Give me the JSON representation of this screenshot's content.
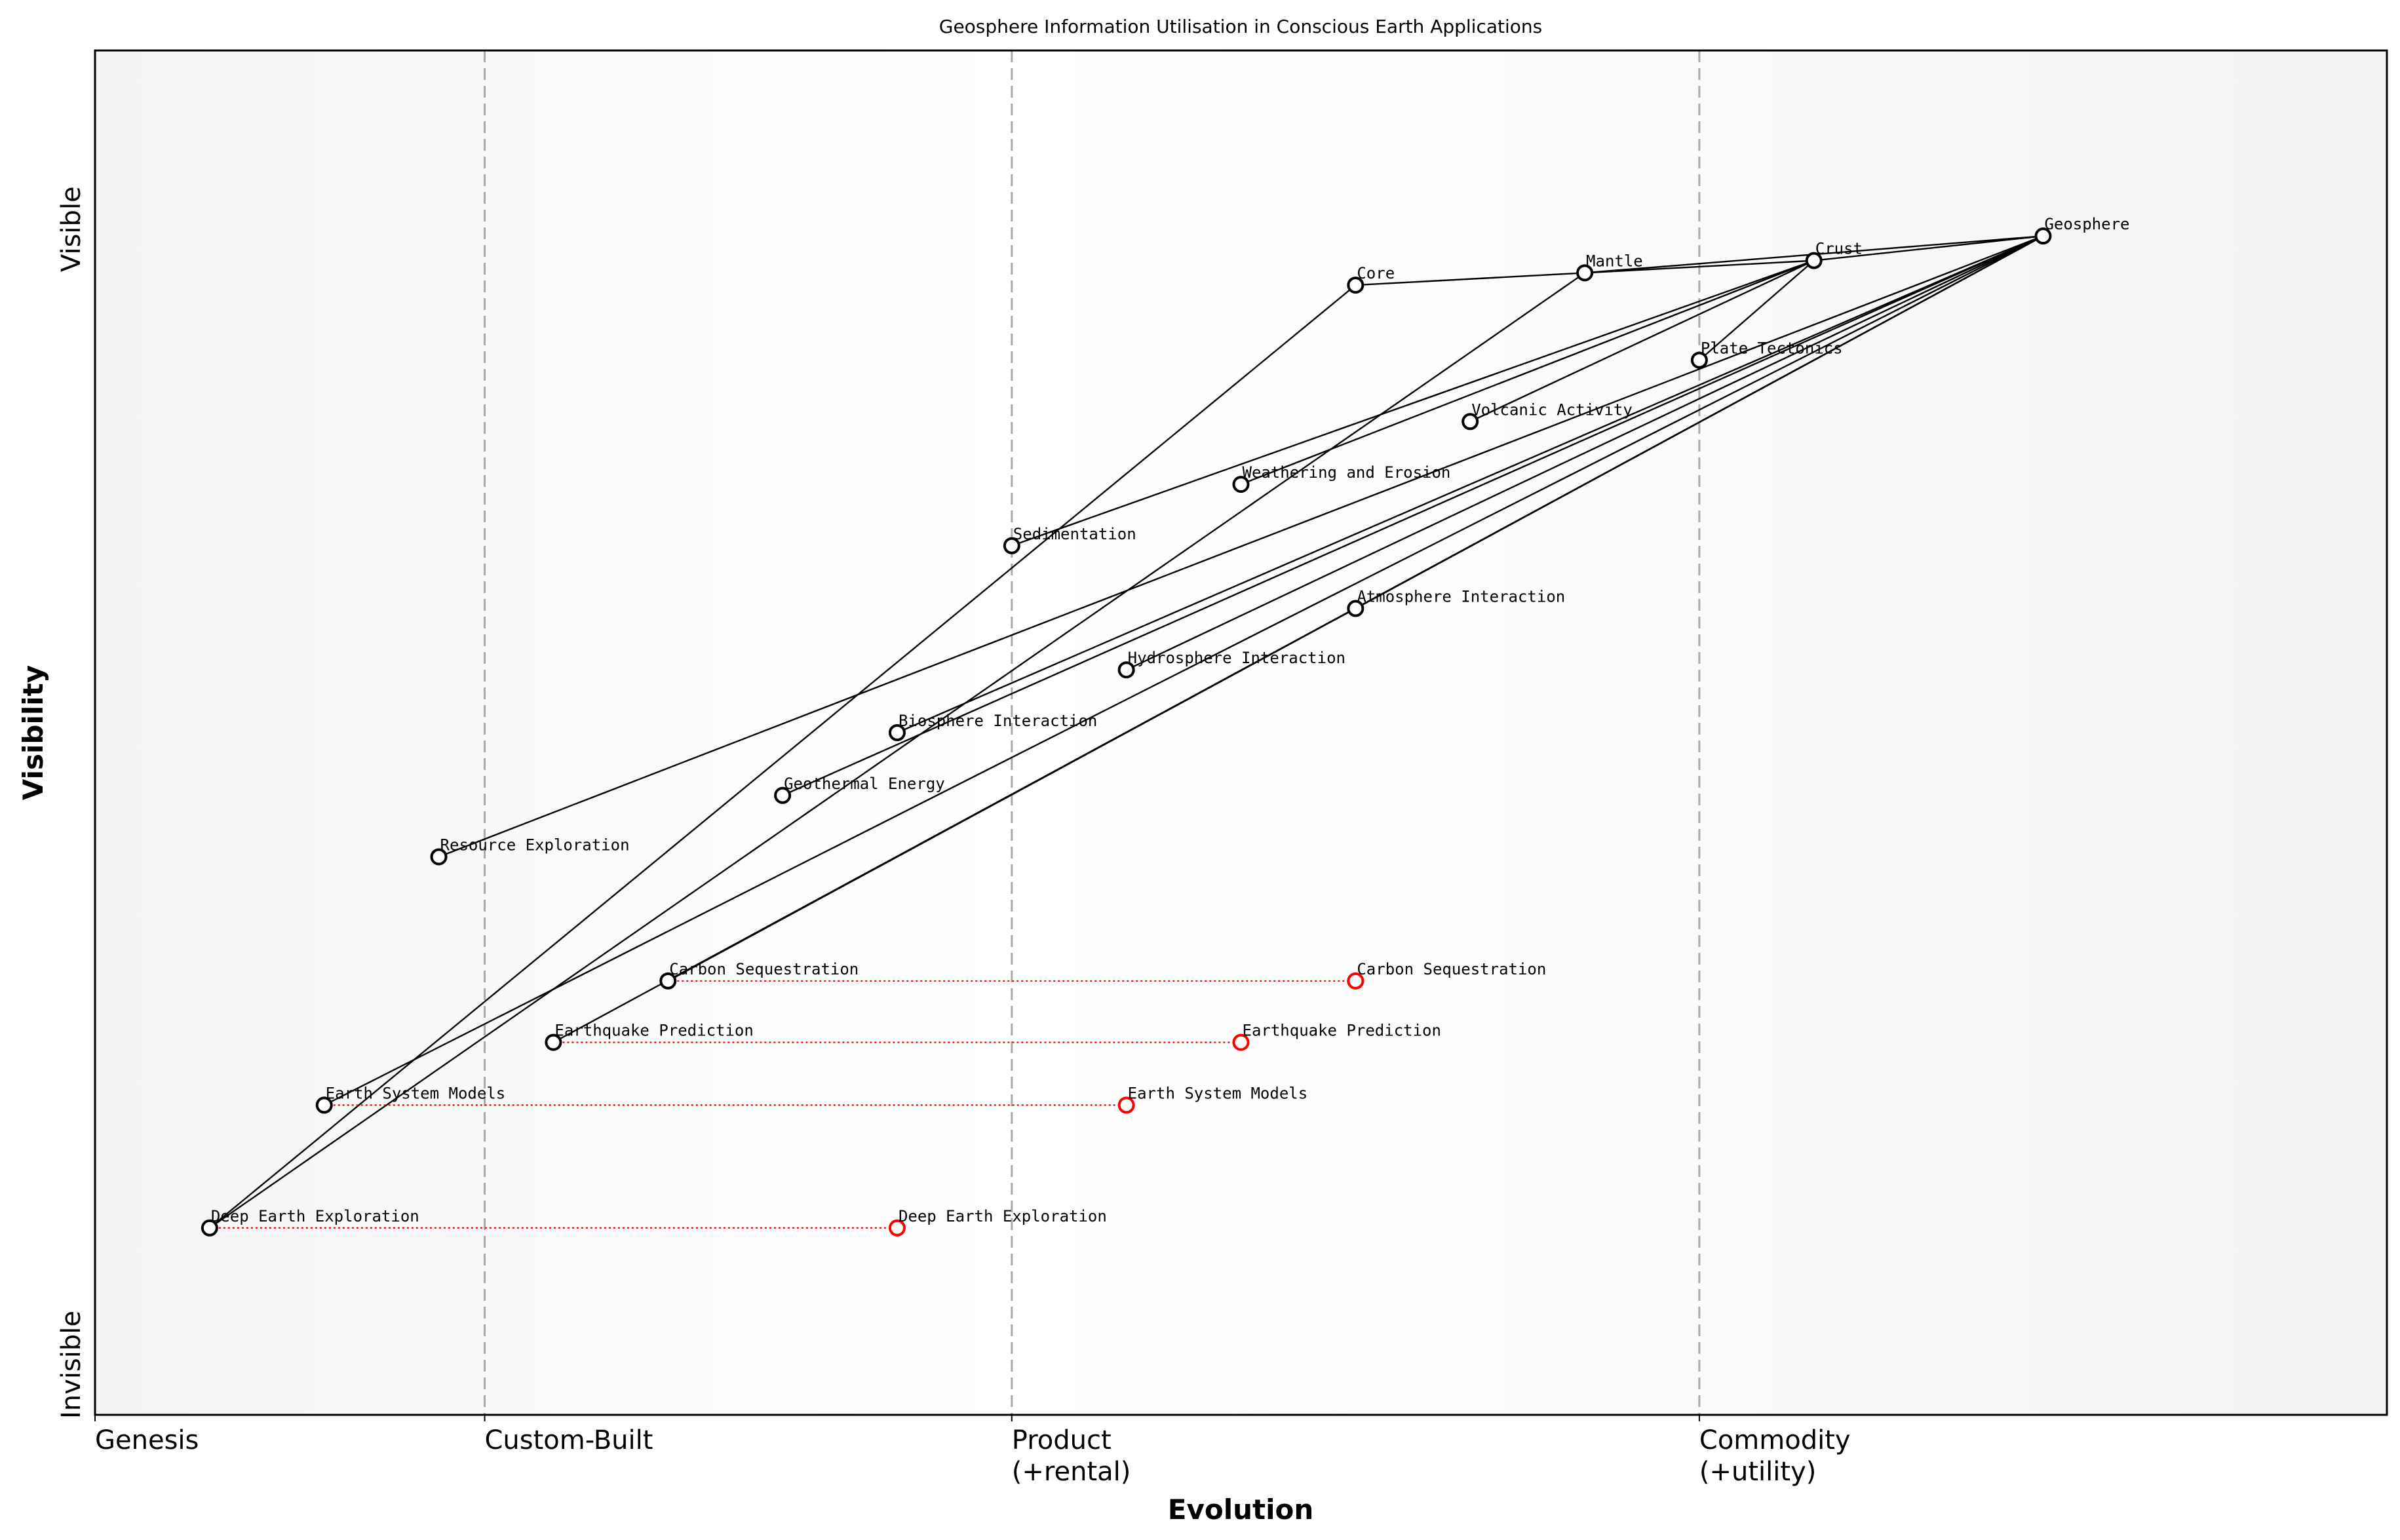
{
  "chart_data": {
    "type": "wardley-map",
    "title": "Geosphere Information Utilisation in Conscious Earth Applications",
    "xlabel": "Evolution",
    "ylabel": "Visibility",
    "xlim": [
      0,
      1
    ],
    "ylim": [
      0,
      1
    ],
    "y_ticks": {
      "low": "Invisible",
      "high": "Visible"
    },
    "stages": [
      {
        "label": "Genesis",
        "label2": "",
        "x": 0
      },
      {
        "label": "Custom-Built",
        "label2": "",
        "x": 0.17
      },
      {
        "label": "Product",
        "label2": "(+rental)",
        "x": 0.4
      },
      {
        "label": "Commodity",
        "label2": "(+utility)",
        "x": 0.7
      }
    ],
    "stage_dividers": [
      0.17,
      0.4,
      0.7
    ],
    "nodes": [
      {
        "name": "Geosphere",
        "evolution": 0.85,
        "visibility": 0.864
      },
      {
        "name": "Crust",
        "evolution": 0.75,
        "visibility": 0.846
      },
      {
        "name": "Mantle",
        "evolution": 0.65,
        "visibility": 0.837
      },
      {
        "name": "Core",
        "evolution": 0.55,
        "visibility": 0.828
      },
      {
        "name": "Plate Tectonics",
        "evolution": 0.7,
        "visibility": 0.773
      },
      {
        "name": "Volcanic Activity",
        "evolution": 0.6,
        "visibility": 0.728
      },
      {
        "name": "Weathering and Erosion",
        "evolution": 0.5,
        "visibility": 0.682
      },
      {
        "name": "Sedimentation",
        "evolution": 0.4,
        "visibility": 0.637
      },
      {
        "name": "Atmosphere Interaction",
        "evolution": 0.55,
        "visibility": 0.591
      },
      {
        "name": "Hydrosphere Interaction",
        "evolution": 0.45,
        "visibility": 0.546
      },
      {
        "name": "Biosphere Interaction",
        "evolution": 0.35,
        "visibility": 0.5
      },
      {
        "name": "Geothermal Energy",
        "evolution": 0.3,
        "visibility": 0.454
      },
      {
        "name": "Resource Exploration",
        "evolution": 0.15,
        "visibility": 0.409
      },
      {
        "name": "Carbon Sequestration",
        "evolution": 0.25,
        "visibility": 0.318
      },
      {
        "name": "Earthquake Prediction",
        "evolution": 0.2,
        "visibility": 0.273
      },
      {
        "name": "Earth System Models",
        "evolution": 0.1,
        "visibility": 0.227
      },
      {
        "name": "Deep Earth Exploration",
        "evolution": 0.05,
        "visibility": 0.137
      }
    ],
    "links": [
      [
        "Crust",
        "Geosphere"
      ],
      [
        "Mantle",
        "Geosphere"
      ],
      [
        "Mantle",
        "Crust"
      ],
      [
        "Core",
        "Mantle"
      ],
      [
        "Plate Tectonics",
        "Crust"
      ],
      [
        "Volcanic Activity",
        "Crust"
      ],
      [
        "Weathering and Erosion",
        "Crust"
      ],
      [
        "Sedimentation",
        "Crust"
      ],
      [
        "Resource Exploration",
        "Geosphere"
      ],
      [
        "Biosphere Interaction",
        "Geosphere"
      ],
      [
        "Geothermal Energy",
        "Geosphere"
      ],
      [
        "Hydrosphere Interaction",
        "Geosphere"
      ],
      [
        "Atmosphere Interaction",
        "Geosphere"
      ],
      [
        "Earth System Models",
        "Geosphere"
      ],
      [
        "Carbon Sequestration",
        "Geosphere"
      ],
      [
        "Earthquake Prediction",
        "Geosphere"
      ],
      [
        "Deep Earth Exploration",
        "Core"
      ],
      [
        "Deep Earth Exploration",
        "Mantle"
      ]
    ],
    "evolutions": [
      {
        "name": "Carbon Sequestration",
        "to": 0.55
      },
      {
        "name": "Earthquake Prediction",
        "to": 0.5
      },
      {
        "name": "Earth System Models",
        "to": 0.45
      },
      {
        "name": "Deep Earth Exploration",
        "to": 0.35
      }
    ],
    "colors": {
      "node": "#000000",
      "evolved_node": "#ff0000",
      "evolve_line": "#ff0000",
      "divider": "#aaaaaa",
      "stage_bg_edge": "#f5f5f5",
      "stage_bg_mid": "#ffffff"
    }
  }
}
